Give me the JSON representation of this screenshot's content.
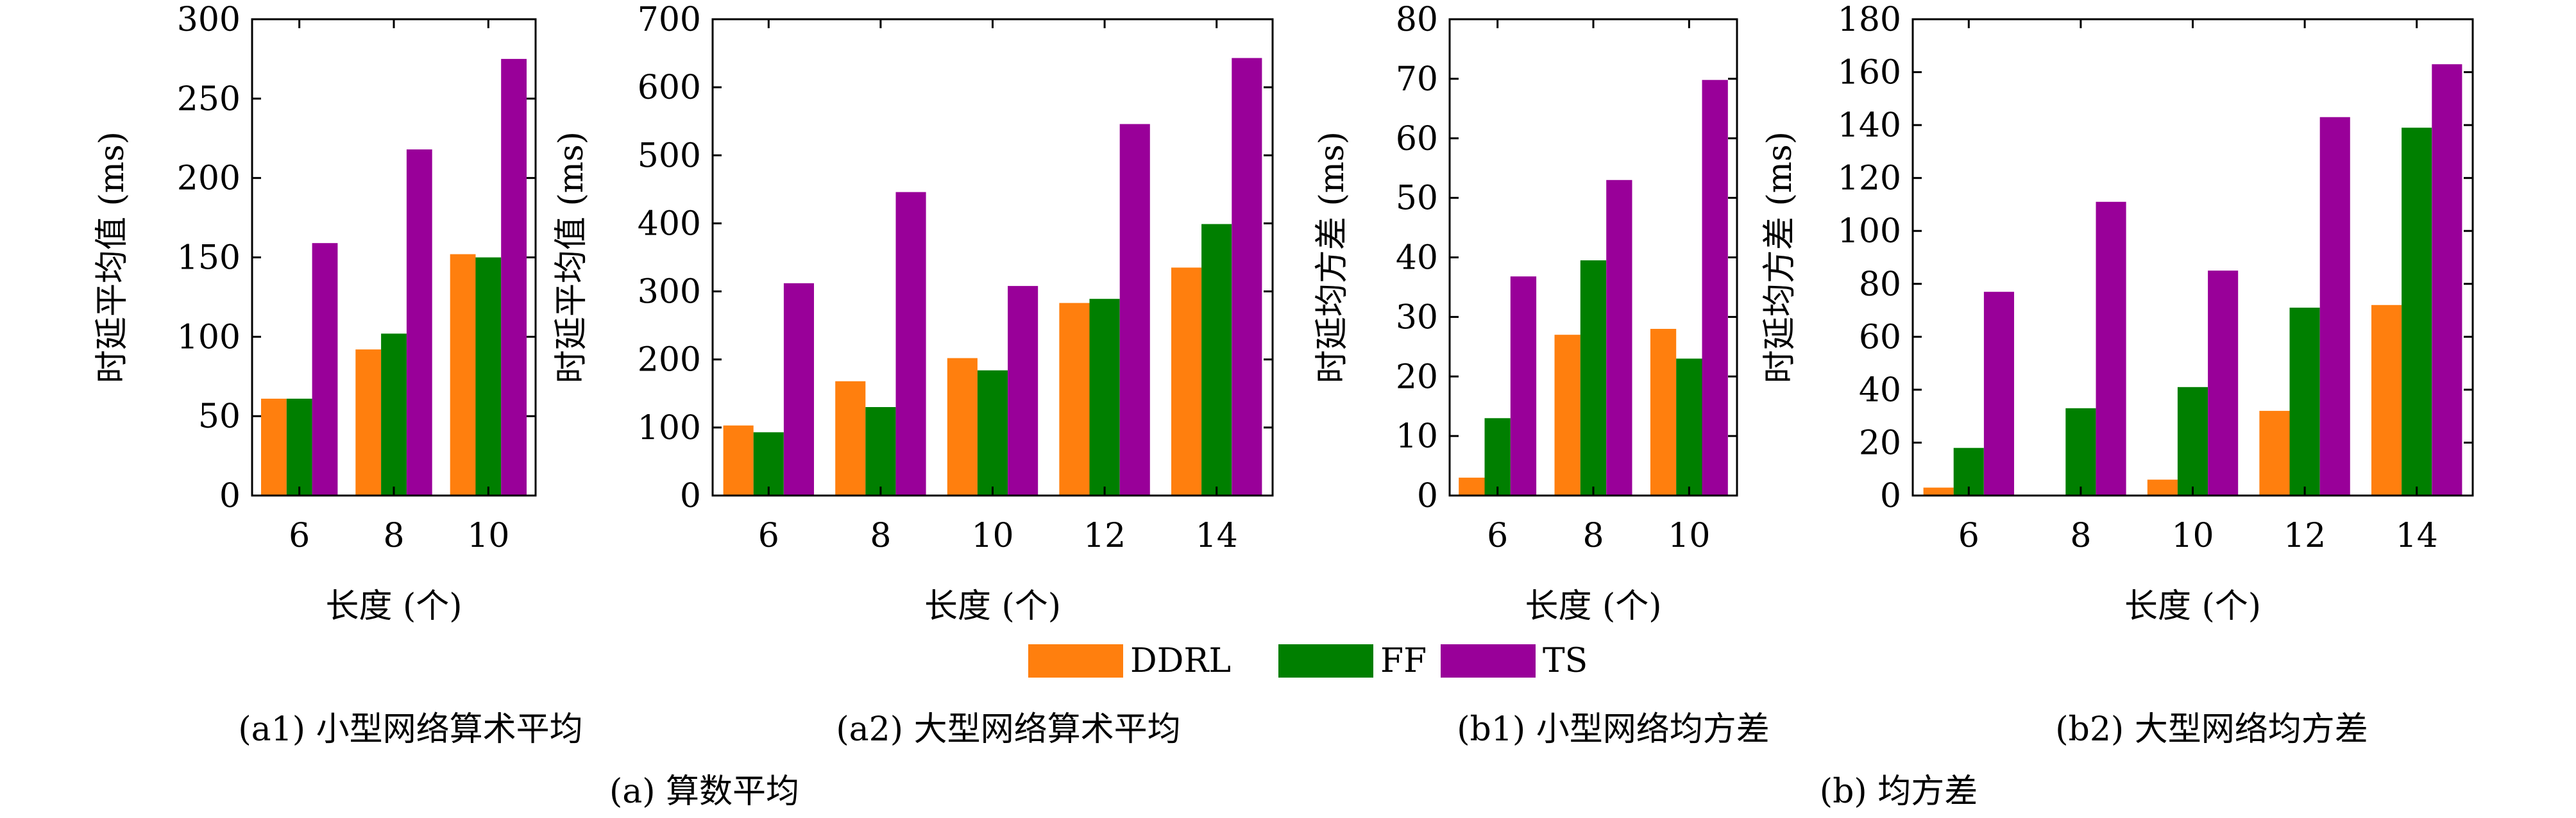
{
  "colors": {
    "DDRL": "#ff7f0e",
    "FF": "#007f00",
    "TS": "#990099"
  },
  "legend": {
    "placement": "bottom-center",
    "entries": [
      "DDRL",
      "FF",
      "TS"
    ]
  },
  "group_captions": [
    "(a) 算数平均",
    "(b) 均方差"
  ],
  "chart_data": [
    {
      "type": "bar",
      "caption": "(a1) 小型网络算术平均",
      "xlabel": "长度 (个)",
      "ylabel": "时延平均值 (ms)",
      "categories": [
        "6",
        "8",
        "10"
      ],
      "ylim": [
        0,
        300
      ],
      "yticks": [
        0,
        50,
        100,
        150,
        200,
        250,
        300
      ],
      "series": [
        {
          "name": "DDRL",
          "values": [
            61,
            92,
            152
          ]
        },
        {
          "name": "FF",
          "values": [
            61,
            102,
            150
          ]
        },
        {
          "name": "TS",
          "values": [
            159,
            218,
            275
          ]
        }
      ]
    },
    {
      "type": "bar",
      "caption": "(a2) 大型网络算术平均",
      "xlabel": "长度 (个)",
      "ylabel": "时延平均值 (ms)",
      "categories": [
        "6",
        "8",
        "10",
        "12",
        "14"
      ],
      "ylim": [
        0,
        700
      ],
      "yticks": [
        0,
        100,
        200,
        300,
        400,
        500,
        600,
        700
      ],
      "series": [
        {
          "name": "DDRL",
          "values": [
            103,
            168,
            202,
            283,
            335
          ]
        },
        {
          "name": "FF",
          "values": [
            93,
            130,
            184,
            289,
            399
          ]
        },
        {
          "name": "TS",
          "values": [
            312,
            446,
            308,
            546,
            643
          ]
        }
      ]
    },
    {
      "type": "bar",
      "caption": "(b1) 小型网络均方差",
      "xlabel": "长度 (个)",
      "ylabel": "时延均方差 (ms)",
      "categories": [
        "6",
        "8",
        "10"
      ],
      "ylim": [
        0,
        80
      ],
      "yticks": [
        0,
        10,
        20,
        30,
        40,
        50,
        60,
        70,
        80
      ],
      "series": [
        {
          "name": "DDRL",
          "values": [
            3,
            27,
            28
          ]
        },
        {
          "name": "FF",
          "values": [
            13,
            39.5,
            23
          ]
        },
        {
          "name": "TS",
          "values": [
            36.8,
            53,
            69.8
          ]
        }
      ]
    },
    {
      "type": "bar",
      "caption": "(b2) 大型网络均方差",
      "xlabel": "长度 (个)",
      "ylabel": "时延均方差 (ms)",
      "categories": [
        "6",
        "8",
        "10",
        "12",
        "14"
      ],
      "ylim": [
        0,
        180
      ],
      "yticks": [
        0,
        20,
        40,
        60,
        80,
        100,
        120,
        140,
        160,
        180
      ],
      "series": [
        {
          "name": "DDRL",
          "values": [
            3,
            0,
            6,
            32,
            72
          ]
        },
        {
          "name": "FF",
          "values": [
            18,
            33,
            41,
            71,
            139
          ]
        },
        {
          "name": "TS",
          "values": [
            77,
            111,
            85,
            143,
            163
          ]
        }
      ]
    }
  ]
}
